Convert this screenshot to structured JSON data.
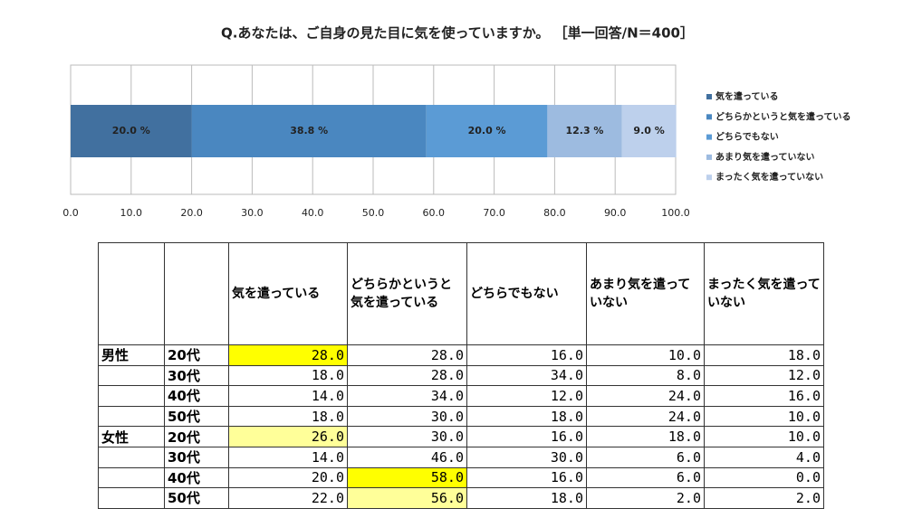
{
  "chart_data": {
    "type": "stacked-bar-horizontal",
    "title": "Q.あなたは、ご自身の見た目に気を使っていますか。 ［単一回答/N＝400］",
    "categories": [
      null
    ],
    "series": [
      {
        "name": "気を遣っている",
        "color": "#41709f",
        "values": [
          20.0
        ],
        "value_labels": [
          "20.0 %"
        ]
      },
      {
        "name": "どちらかというと気を遣っている",
        "color": "#4a87c0",
        "values": [
          38.8
        ],
        "value_labels": [
          "38.8 %"
        ]
      },
      {
        "name": "どちらでもない",
        "color": "#5b9bd5",
        "values": [
          20.0
        ],
        "value_labels": [
          "20.0 %"
        ]
      },
      {
        "name": "あまり気を遣っていない",
        "color": "#9dbbe0",
        "values": [
          12.3
        ],
        "value_labels": [
          "12.3 %"
        ]
      },
      {
        "name": "まったく気を遣っていない",
        "color": "#bdd0ec",
        "values": [
          9.0
        ],
        "value_labels": [
          "9.0 %"
        ]
      }
    ],
    "xlim": [
      0,
      100
    ],
    "xticks": [
      {
        "value": 0,
        "label": "0.0"
      },
      {
        "value": 10,
        "label": "10.0"
      },
      {
        "value": 20,
        "label": "20.0"
      },
      {
        "value": 30,
        "label": "30.0"
      },
      {
        "value": 40,
        "label": "40.0"
      },
      {
        "value": 50,
        "label": "50.0"
      },
      {
        "value": 60,
        "label": "60.0"
      },
      {
        "value": 70,
        "label": "70.0"
      },
      {
        "value": 80,
        "label": "80.0"
      },
      {
        "value": 90,
        "label": "90.0"
      },
      {
        "value": 100,
        "label": "100.0"
      }
    ],
    "grid": true,
    "legend": "right"
  },
  "table": {
    "columns": [
      "気を遣っている",
      "どちらかというと気を遣っている",
      "どちらでもない",
      "あまり気を遣っていない",
      "まったく気を遣っていない"
    ],
    "groups": [
      {
        "label": "男性",
        "rows": [
          {
            "age": "20代",
            "cells": [
              "28.0",
              "28.0",
              "16.0",
              "10.0",
              "18.0"
            ],
            "highlight": {
              "col": 0,
              "color": "#ffff00"
            }
          },
          {
            "age": "30代",
            "cells": [
              "18.0",
              "28.0",
              "34.0",
              "8.0",
              "12.0"
            ]
          },
          {
            "age": "40代",
            "cells": [
              "14.0",
              "34.0",
              "12.0",
              "24.0",
              "16.0"
            ]
          },
          {
            "age": "50代",
            "cells": [
              "18.0",
              "30.0",
              "18.0",
              "24.0",
              "10.0"
            ]
          }
        ]
      },
      {
        "label": "女性",
        "rows": [
          {
            "age": "20代",
            "cells": [
              "26.0",
              "30.0",
              "16.0",
              "18.0",
              "10.0"
            ],
            "highlight": {
              "col": 0,
              "color": "#ffff99"
            }
          },
          {
            "age": "30代",
            "cells": [
              "14.0",
              "46.0",
              "30.0",
              "6.0",
              "4.0"
            ]
          },
          {
            "age": "40代",
            "cells": [
              "20.0",
              "58.0",
              "16.0",
              "6.0",
              "0.0"
            ],
            "highlight": {
              "col": 1,
              "color": "#ffff00"
            }
          },
          {
            "age": "50代",
            "cells": [
              "22.0",
              "56.0",
              "18.0",
              "2.0",
              "2.0"
            ],
            "highlight": {
              "col": 1,
              "color": "#ffff99"
            }
          }
        ]
      }
    ]
  }
}
